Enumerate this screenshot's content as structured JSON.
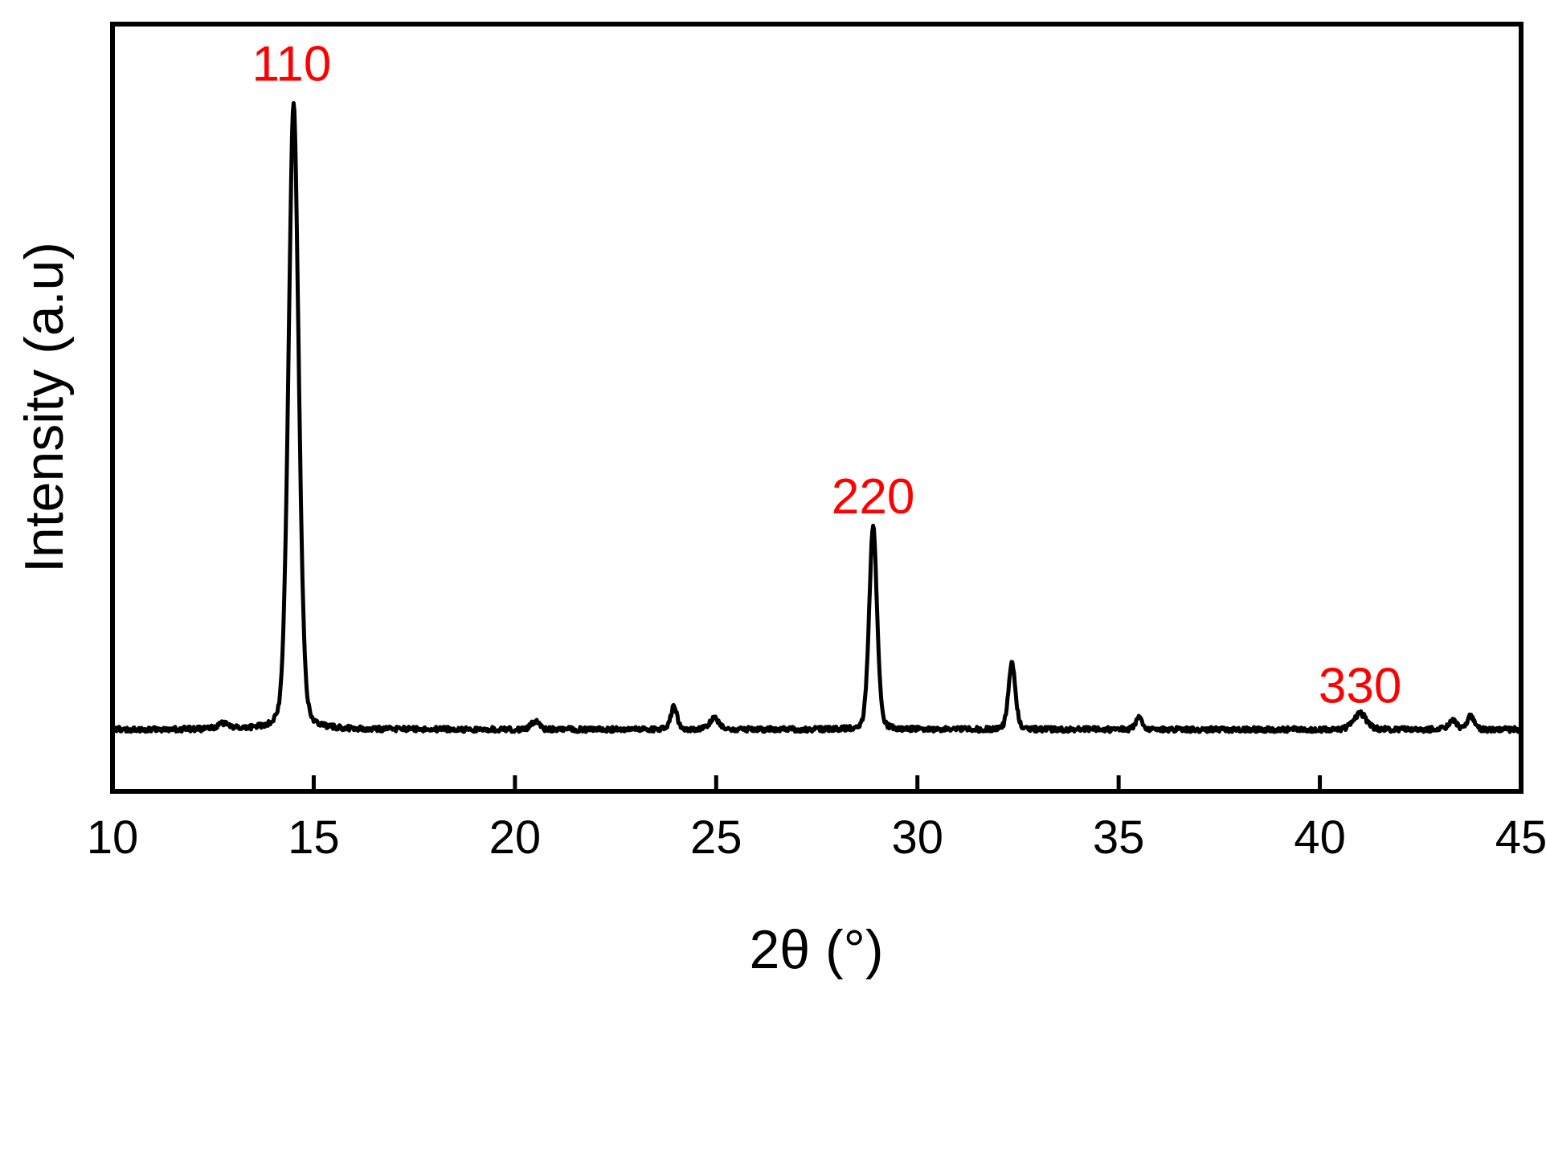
{
  "chart_data": {
    "type": "line",
    "title": "",
    "xlabel": "2θ (°)",
    "ylabel": "Intensity (a.u)",
    "xlim": [
      10,
      45
    ],
    "ylim": [
      0,
      1.15
    ],
    "x_ticks": [
      10,
      15,
      20,
      25,
      30,
      35,
      40,
      45
    ],
    "y_ticks": [],
    "grid": false,
    "legend": false,
    "line_color": "#000000",
    "frame_color": "#000000",
    "background": "#ffffff",
    "annotation_color": "#ff0000",
    "noise": 0.008,
    "peaks": [
      {
        "two_theta": 12.75,
        "rel_intensity": 0.008,
        "width": 0.15,
        "hkl": ""
      },
      {
        "two_theta": 14.5,
        "rel_intensity": 1.0,
        "width": 0.13,
        "hkl": "110"
      },
      {
        "two_theta": 20.5,
        "rel_intensity": 0.013,
        "width": 0.1,
        "hkl": ""
      },
      {
        "two_theta": 23.95,
        "rel_intensity": 0.036,
        "width": 0.08,
        "hkl": ""
      },
      {
        "two_theta": 24.95,
        "rel_intensity": 0.018,
        "width": 0.12,
        "hkl": ""
      },
      {
        "two_theta": 28.9,
        "rel_intensity": 0.325,
        "width": 0.1,
        "hkl": "220"
      },
      {
        "two_theta": 32.35,
        "rel_intensity": 0.105,
        "width": 0.09,
        "hkl": ""
      },
      {
        "two_theta": 35.5,
        "rel_intensity": 0.018,
        "width": 0.08,
        "hkl": ""
      },
      {
        "two_theta": 41.0,
        "rel_intensity": 0.026,
        "width": 0.16,
        "hkl": "330"
      },
      {
        "two_theta": 43.3,
        "rel_intensity": 0.016,
        "width": 0.1,
        "hkl": ""
      },
      {
        "two_theta": 43.75,
        "rel_intensity": 0.022,
        "width": 0.09,
        "hkl": ""
      }
    ],
    "annotations": [
      {
        "label": "110",
        "x": 14.45,
        "y": 1.035
      },
      {
        "label": "220",
        "x": 28.9,
        "y": 0.345
      },
      {
        "label": "330",
        "x": 41.0,
        "y": 0.043
      }
    ]
  }
}
